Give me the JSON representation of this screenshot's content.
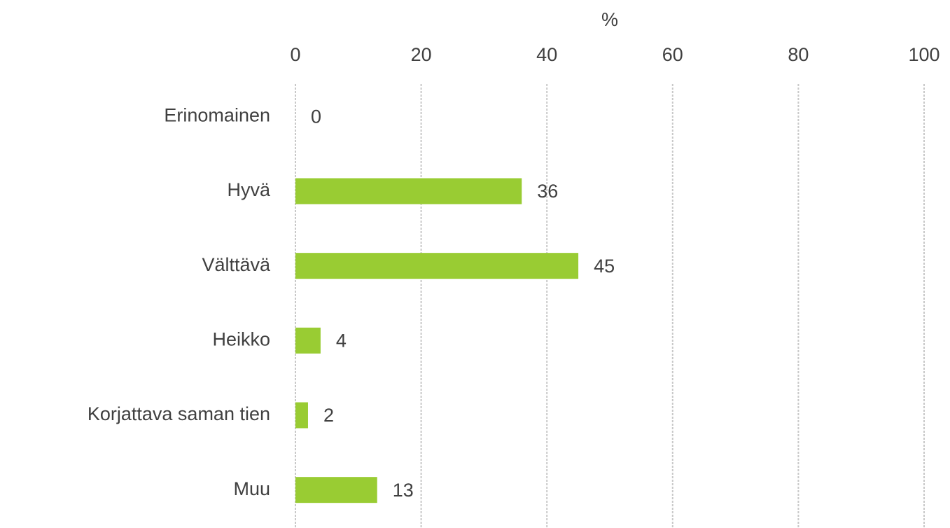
{
  "chart_data": {
    "type": "bar",
    "orientation": "horizontal",
    "xlabel": "%",
    "categories": [
      "Erinomainen",
      "Hyvä",
      "Välttävä",
      "Heikko",
      "Korjattava saman tien",
      "Muu"
    ],
    "values": [
      0,
      36,
      45,
      4,
      2,
      13
    ],
    "color": "#99cc33",
    "xlim": [
      0,
      100
    ],
    "xticks": [
      0,
      20,
      40,
      60,
      80,
      100
    ],
    "grid": true
  }
}
